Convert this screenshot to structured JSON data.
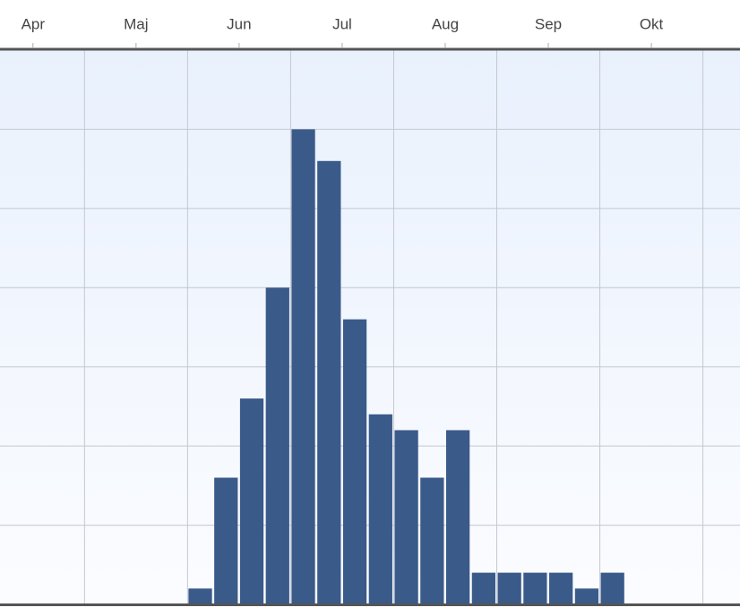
{
  "chart_data": {
    "type": "histogram",
    "bins": [
      1.5,
      1.75,
      2,
      2.25,
      2.5,
      2.75,
      3,
      3.25,
      3.5,
      3.75,
      4,
      4.25,
      4.5,
      4.75,
      5,
      5.25,
      5.5,
      5.75
    ],
    "values": [
      1,
      8,
      13,
      20,
      30,
      28,
      18,
      12,
      11,
      8,
      11,
      2,
      2,
      2,
      2,
      1,
      2
    ],
    "color": "#3a5a89",
    "xlim": [
      -0.32,
      6.86
    ],
    "xticks": [
      {
        "value": 0,
        "label": "Apr"
      },
      {
        "value": 1,
        "label": "Maj"
      },
      {
        "value": 2,
        "label": "Jun"
      },
      {
        "value": 3,
        "label": "Jul"
      },
      {
        "value": 4,
        "label": "Aug"
      },
      {
        "value": 5,
        "label": "Sep"
      },
      {
        "value": 6,
        "label": "Okt"
      }
    ],
    "xgrid": [
      0.5,
      1.5,
      2.5,
      3.5,
      4.5,
      5.5,
      6.5
    ],
    "ylim": [
      0,
      35
    ],
    "yticks": [
      0,
      5,
      10,
      15,
      20,
      25,
      30,
      35
    ],
    "grid": true
  }
}
